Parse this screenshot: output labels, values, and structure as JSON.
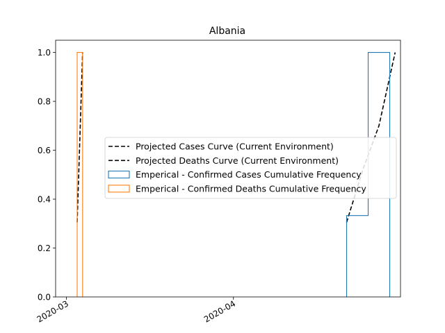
{
  "chart_data": {
    "type": "line",
    "title": "Albania",
    "xlabel": "",
    "ylabel": "",
    "x_axis": {
      "kind": "date",
      "range": [
        "2020-02-28",
        "2020-05-02"
      ],
      "ticks": [
        "2020-03-01",
        "2020-04-01"
      ],
      "tick_labels": [
        "2020-03",
        "2020-04"
      ]
    },
    "y_axis": {
      "range": [
        0,
        1.05
      ],
      "ticks": [
        0.0,
        0.2,
        0.4,
        0.6,
        0.8,
        1.0
      ],
      "tick_labels": [
        "0.0",
        "0.2",
        "0.4",
        "0.6",
        "0.8",
        "1.0"
      ]
    },
    "grid": false,
    "legend_position": "center-right",
    "series": [
      {
        "name": "Projected Cases Curve (Current Environment)",
        "kind": "line",
        "style": "dashed",
        "color": "#000000",
        "points": [
          [
            "2020-04-22",
            0.305
          ],
          [
            "2020-04-25",
            0.52
          ],
          [
            "2020-04-28",
            0.7
          ],
          [
            "2020-05-01",
            1.0
          ]
        ]
      },
      {
        "name": "Projected Deaths Curve (Current Environment)",
        "kind": "line",
        "style": "dashed",
        "color": "#000000",
        "points": [
          [
            "2020-03-03",
            0.305
          ],
          [
            "2020-03-04",
            1.0
          ]
        ]
      },
      {
        "name": "Emperical - Confirmed Cases Cumulative Frequency",
        "kind": "step",
        "color": "#1f77b4",
        "points": [
          [
            "2020-04-22",
            0.0
          ],
          [
            "2020-04-22",
            0.333
          ],
          [
            "2020-04-26",
            0.333
          ],
          [
            "2020-04-26",
            1.0
          ],
          [
            "2020-04-30",
            1.0
          ],
          [
            "2020-04-30",
            0.0
          ]
        ]
      },
      {
        "name": "Emperical - Confirmed Deaths Cumulative Frequency",
        "kind": "step",
        "color": "#ff7f0e",
        "points": [
          [
            "2020-03-03",
            0.0
          ],
          [
            "2020-03-03",
            1.0
          ],
          [
            "2020-03-04",
            1.0
          ],
          [
            "2020-03-04",
            0.0
          ]
        ]
      }
    ]
  }
}
